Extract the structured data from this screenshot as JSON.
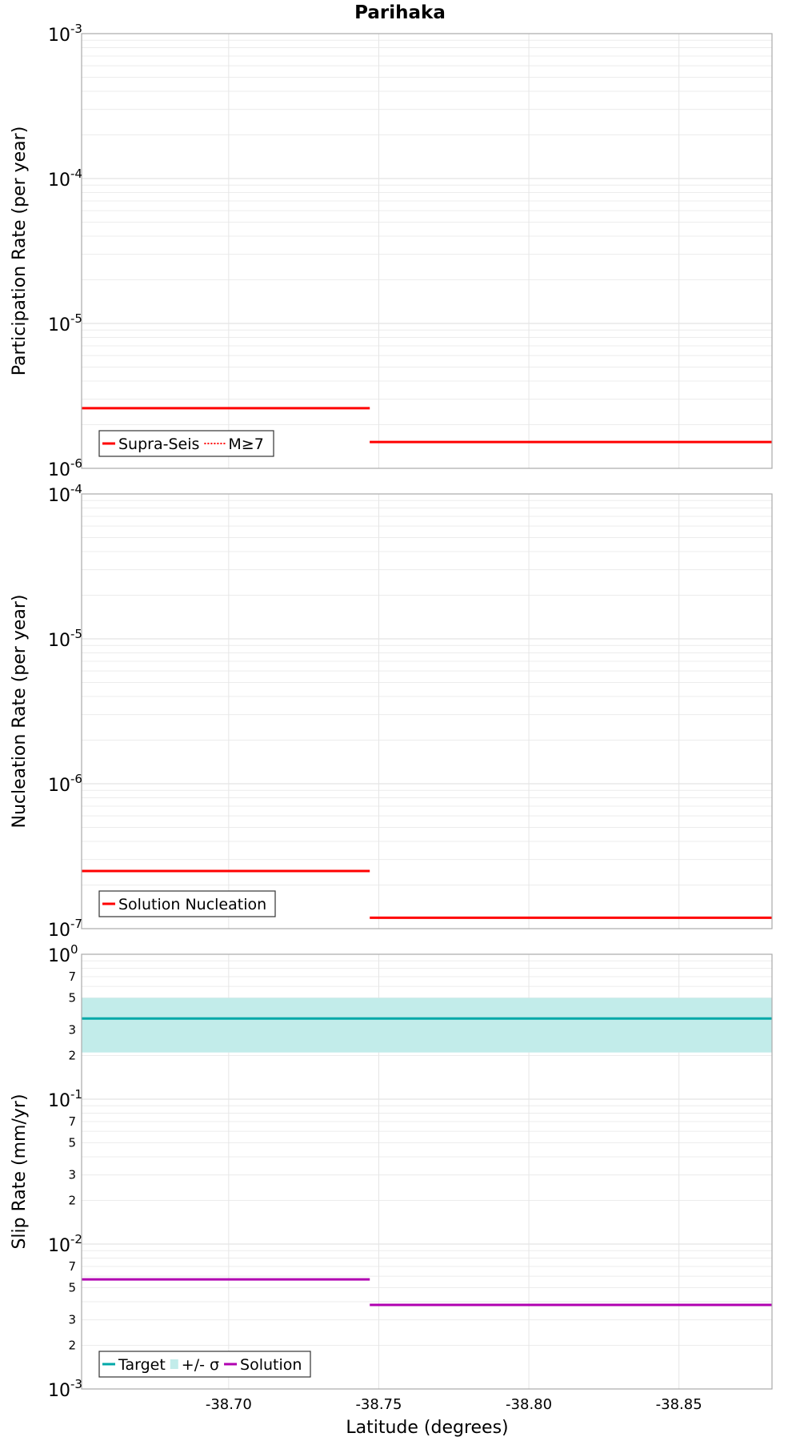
{
  "title": "Parihaka",
  "xlabel": "Latitude (degrees)",
  "colors": {
    "red": "#ff0000",
    "target": "#00a8a8",
    "band": "#c2ecea",
    "solution": "#b000b0"
  },
  "chart_data": [
    {
      "type": "line",
      "ylabel": "Participation Rate (per year)",
      "yscale": "log",
      "ylim": [
        1e-06,
        0.001
      ],
      "xlim": [
        -38.651,
        -38.881
      ],
      "xticks": [
        -38.7,
        -38.75,
        -38.8,
        -38.85
      ],
      "xtick_labels": [
        "-38.70",
        "-38.75",
        "-38.80",
        "-38.85"
      ],
      "ytick_labels": [
        {
          "base": "10",
          "exp": "-3"
        },
        {
          "base": "10",
          "exp": "-4"
        },
        {
          "base": "10",
          "exp": "-5"
        },
        {
          "base": "10",
          "exp": "-6"
        }
      ],
      "series": [
        {
          "name": "Supra-Seis",
          "style": "solid",
          "color": "#ff0000",
          "segments": [
            {
              "x": [
                -38.651,
                -38.747
              ],
              "y": 2.6e-06
            },
            {
              "x": [
                -38.747,
                -38.881
              ],
              "y": 1.52e-06
            }
          ]
        },
        {
          "name": "M≥7",
          "style": "dotted",
          "color": "#ff0000",
          "segments": [
            {
              "x": [
                -38.747,
                -38.881
              ],
              "y": 1.52e-06
            }
          ]
        }
      ],
      "legend": [
        "Supra-Seis",
        "M≥7"
      ],
      "legend_loc": "lower-left"
    },
    {
      "type": "line",
      "ylabel": "Nucleation Rate (per year)",
      "yscale": "log",
      "ylim": [
        1e-07,
        0.0001
      ],
      "xlim": [
        -38.651,
        -38.881
      ],
      "ytick_labels": [
        {
          "base": "10",
          "exp": "-4"
        },
        {
          "base": "10",
          "exp": "-5"
        },
        {
          "base": "10",
          "exp": "-6"
        },
        {
          "base": "10",
          "exp": "-7"
        }
      ],
      "series": [
        {
          "name": "Solution Nucleation",
          "style": "solid",
          "color": "#ff0000",
          "segments": [
            {
              "x": [
                -38.651,
                -38.747
              ],
              "y": 2.5e-07
            },
            {
              "x": [
                -38.747,
                -38.881
              ],
              "y": 1.19e-07
            }
          ]
        }
      ],
      "legend": [
        "Solution Nucleation"
      ],
      "legend_loc": "lower-left"
    },
    {
      "type": "line",
      "ylabel": "Slip Rate (mm/yr)",
      "yscale": "log",
      "ylim": [
        0.001,
        1
      ],
      "xlim": [
        -38.651,
        -38.881
      ],
      "ytick_labels": [
        {
          "base": "10",
          "exp": "0"
        },
        {
          "base": "10",
          "exp": "-1"
        },
        {
          "base": "10",
          "exp": "-2"
        },
        {
          "base": "10",
          "exp": "-3"
        }
      ],
      "minor_tick_labels": [
        "2",
        "3",
        "5",
        "7"
      ],
      "series": [
        {
          "name": "Target",
          "style": "solid",
          "color": "#00a8a8",
          "segments": [
            {
              "x": [
                -38.651,
                -38.881
              ],
              "y": 0.36
            }
          ]
        },
        {
          "name": "+/- σ",
          "style": "band",
          "color": "#c2ecea",
          "band": {
            "x": [
              -38.651,
              -38.881
            ],
            "y": [
              0.21,
              0.5
            ]
          }
        },
        {
          "name": "Solution",
          "style": "solid",
          "color": "#b000b0",
          "segments": [
            {
              "x": [
                -38.651,
                -38.747
              ],
              "y": 0.0057
            },
            {
              "x": [
                -38.747,
                -38.881
              ],
              "y": 0.0038
            }
          ]
        }
      ],
      "legend": [
        "Target",
        "+/- σ",
        "Solution"
      ],
      "legend_loc": "lower-left"
    }
  ]
}
